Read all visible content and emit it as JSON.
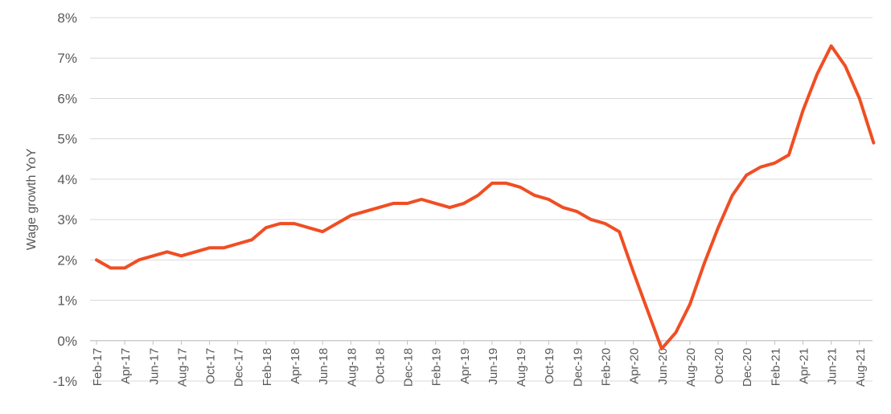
{
  "chart_data": {
    "type": "line",
    "title": "",
    "xlabel": "",
    "ylabel": "Wage growth YoY",
    "ylim": [
      -1,
      8
    ],
    "yticks": [
      "-1%",
      "0%",
      "1%",
      "2%",
      "3%",
      "4%",
      "5%",
      "6%",
      "7%",
      "8%"
    ],
    "grid": true,
    "colors": {
      "line": "#f04e23",
      "grid": "#d9d9d9",
      "text": "#595959"
    },
    "x": [
      "Feb-17",
      "Mar-17",
      "Apr-17",
      "May-17",
      "Jun-17",
      "Jul-17",
      "Aug-17",
      "Sep-17",
      "Oct-17",
      "Nov-17",
      "Dec-17",
      "Jan-18",
      "Feb-18",
      "Mar-18",
      "Apr-18",
      "May-18",
      "Jun-18",
      "Jul-18",
      "Aug-18",
      "Sep-18",
      "Oct-18",
      "Nov-18",
      "Dec-18",
      "Jan-19",
      "Feb-19",
      "Mar-19",
      "Apr-19",
      "May-19",
      "Jun-19",
      "Jul-19",
      "Aug-19",
      "Sep-19",
      "Oct-19",
      "Nov-19",
      "Dec-19",
      "Jan-20",
      "Feb-20",
      "Mar-20",
      "Apr-20",
      "May-20",
      "Jun-20",
      "Jul-20",
      "Aug-20",
      "Sep-20",
      "Oct-20",
      "Nov-20",
      "Dec-20",
      "Jan-21",
      "Feb-21",
      "Mar-21",
      "Apr-21",
      "May-21",
      "Jun-21",
      "Jul-21",
      "Aug-21",
      "Sep-21"
    ],
    "xtick_labels": [
      "Feb-17",
      "Apr-17",
      "Jun-17",
      "Aug-17",
      "Oct-17",
      "Dec-17",
      "Feb-18",
      "Apr-18",
      "Jun-18",
      "Aug-18",
      "Oct-18",
      "Dec-18",
      "Feb-19",
      "Apr-19",
      "Jun-19",
      "Aug-19",
      "Oct-19",
      "Dec-19",
      "Feb-20",
      "Apr-20",
      "Jun-20",
      "Aug-20",
      "Oct-20",
      "Dec-20",
      "Feb-21",
      "Apr-21",
      "Jun-21",
      "Aug-21"
    ],
    "series": [
      {
        "values": [
          2.0,
          1.8,
          1.8,
          2.0,
          2.1,
          2.2,
          2.1,
          2.2,
          2.3,
          2.3,
          2.4,
          2.5,
          2.8,
          2.9,
          2.9,
          2.8,
          2.7,
          2.9,
          3.1,
          3.2,
          3.3,
          3.4,
          3.4,
          3.5,
          3.4,
          3.3,
          3.4,
          3.6,
          3.9,
          3.9,
          3.8,
          3.6,
          3.5,
          3.3,
          3.2,
          3.0,
          2.9,
          2.7,
          1.7,
          0.75,
          -0.2,
          0.2,
          0.9,
          1.9,
          2.8,
          3.6,
          4.1,
          4.3,
          4.4,
          4.6,
          5.7,
          6.6,
          7.3,
          6.8,
          6.0,
          4.9
        ]
      }
    ]
  }
}
